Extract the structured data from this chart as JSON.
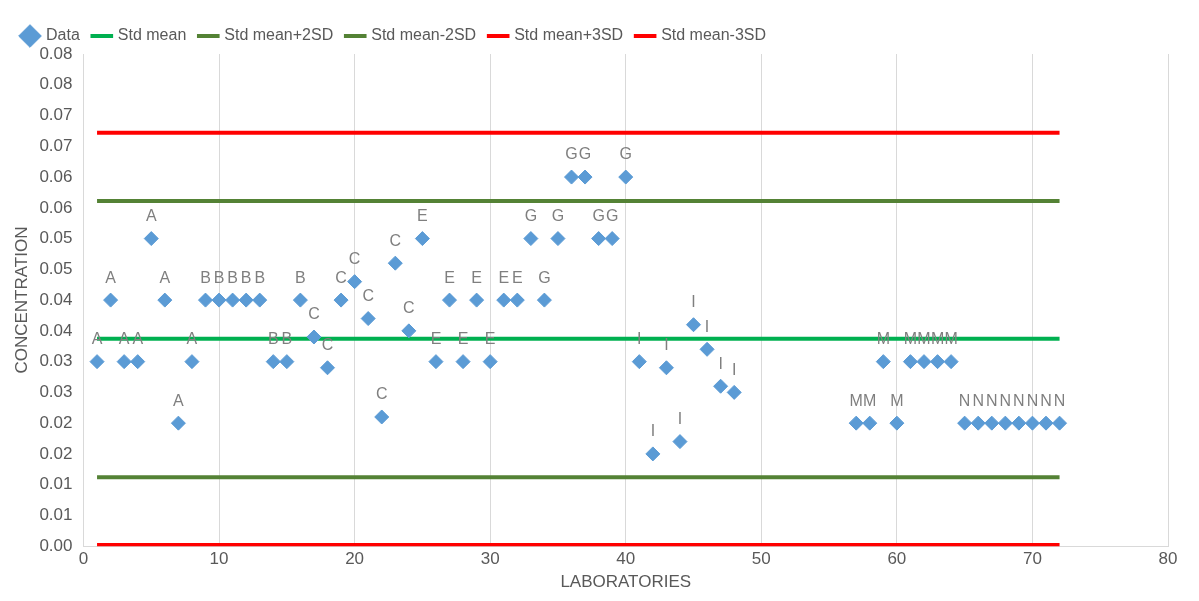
{
  "chart_data": {
    "type": "scatter",
    "xlabel": "LABORATORIES",
    "ylabel": "CONCENTRATION",
    "xlim": [
      0,
      80
    ],
    "xticks": [
      0,
      10,
      20,
      30,
      40,
      50,
      60,
      70,
      80
    ],
    "ylim": [
      0,
      0.08
    ],
    "yticks": [
      {
        "value": 0,
        "label": "0.00"
      },
      {
        "value": 0.005,
        "label": "0.01"
      },
      {
        "value": 0.01,
        "label": "0.01"
      },
      {
        "value": 0.015,
        "label": "0.02"
      },
      {
        "value": 0.02,
        "label": "0.02"
      },
      {
        "value": 0.025,
        "label": "0.03"
      },
      {
        "value": 0.03,
        "label": "0.03"
      },
      {
        "value": 0.035,
        "label": "0.04"
      },
      {
        "value": 0.04,
        "label": "0.04"
      },
      {
        "value": 0.045,
        "label": "0.05"
      },
      {
        "value": 0.05,
        "label": "0.05"
      },
      {
        "value": 0.055,
        "label": "0.06"
      },
      {
        "value": 0.06,
        "label": "0.06"
      },
      {
        "value": 0.065,
        "label": "0.07"
      },
      {
        "value": 0.07,
        "label": "0.07"
      },
      {
        "value": 0.075,
        "label": "0.08"
      },
      {
        "value": 0.08,
        "label": "0.08"
      }
    ],
    "grid": "x",
    "legend": "top",
    "line_style": "solid",
    "series": [
      {
        "name": "Data",
        "marker": "diamond",
        "color": "#5b9bd5",
        "x": [
          1,
          2,
          3,
          4,
          5,
          6,
          7,
          8,
          9,
          10,
          11,
          12,
          13,
          14,
          15,
          16,
          17,
          18,
          19,
          20,
          21,
          22,
          23,
          24,
          25,
          26,
          27,
          28,
          29,
          30,
          31,
          32,
          33,
          34,
          35,
          36,
          37,
          38,
          39,
          40,
          41,
          42,
          43,
          44,
          45,
          46,
          47,
          48,
          57,
          58,
          59,
          60,
          61,
          62,
          63,
          64,
          65,
          66,
          67,
          68,
          69,
          70,
          71,
          72
        ],
        "values": [
          0.03,
          0.04,
          0.03,
          0.03,
          0.05,
          0.04,
          0.02,
          0.03,
          0.04,
          0.04,
          0.04,
          0.04,
          0.04,
          0.03,
          0.03,
          0.04,
          0.034,
          0.029,
          0.04,
          0.043,
          0.037,
          0.021,
          0.046,
          0.035,
          0.05,
          0.03,
          0.04,
          0.03,
          0.04,
          0.03,
          0.04,
          0.04,
          0.05,
          0.04,
          0.05,
          0.06,
          0.06,
          0.05,
          0.05,
          0.06,
          0.03,
          0.015,
          0.029,
          0.017,
          0.036,
          0.032,
          0.026,
          0.025,
          0.02,
          0.02,
          0.03,
          0.02,
          0.03,
          0.03,
          0.03,
          0.03,
          0.02,
          0.02,
          0.02,
          0.02,
          0.02,
          0.02,
          0.02,
          0.02
        ],
        "value_labels": [
          "A",
          "A",
          "A",
          "A",
          "A",
          "A",
          "A",
          "A",
          "B",
          "B",
          "B",
          "B",
          "B",
          "B",
          "B",
          "B",
          "C",
          "C",
          "C",
          "C",
          "C",
          "C",
          "C",
          "C",
          "E",
          "E",
          "E",
          "E",
          "E",
          "E",
          "E",
          "E",
          "G",
          "G",
          "G",
          "G",
          "G",
          "G",
          "G",
          "G",
          "I",
          "I",
          "I",
          "I",
          "I",
          "I",
          "I",
          "I",
          "M",
          "M",
          "M",
          "M",
          "M",
          "M",
          "M",
          "M",
          "N",
          "N",
          "N",
          "N",
          "N",
          "N",
          "N",
          "N"
        ]
      },
      {
        "name": "Std mean",
        "type": "line",
        "marker": "none",
        "color": "#00b050",
        "x": [
          1,
          72
        ],
        "values": [
          0.0337,
          0.0337
        ]
      },
      {
        "name": "Std mean+2SD",
        "type": "line",
        "marker": "none",
        "color": "#548235",
        "x": [
          1,
          72
        ],
        "values": [
          0.0561,
          0.0561
        ]
      },
      {
        "name": "Std mean-2SD",
        "type": "line",
        "marker": "none",
        "color": "#548235",
        "x": [
          1,
          72
        ],
        "values": [
          0.0112,
          0.0112
        ]
      },
      {
        "name": "Std mean+3SD",
        "type": "line",
        "marker": "none",
        "color": "#ff0000",
        "x": [
          1,
          72
        ],
        "values": [
          0.0672,
          0.0672
        ]
      },
      {
        "name": "Std mean-3SD",
        "type": "line",
        "marker": "none",
        "color": "#ff0000",
        "x": [
          1,
          72
        ],
        "values": [
          0.0002,
          0.0002
        ]
      }
    ]
  }
}
